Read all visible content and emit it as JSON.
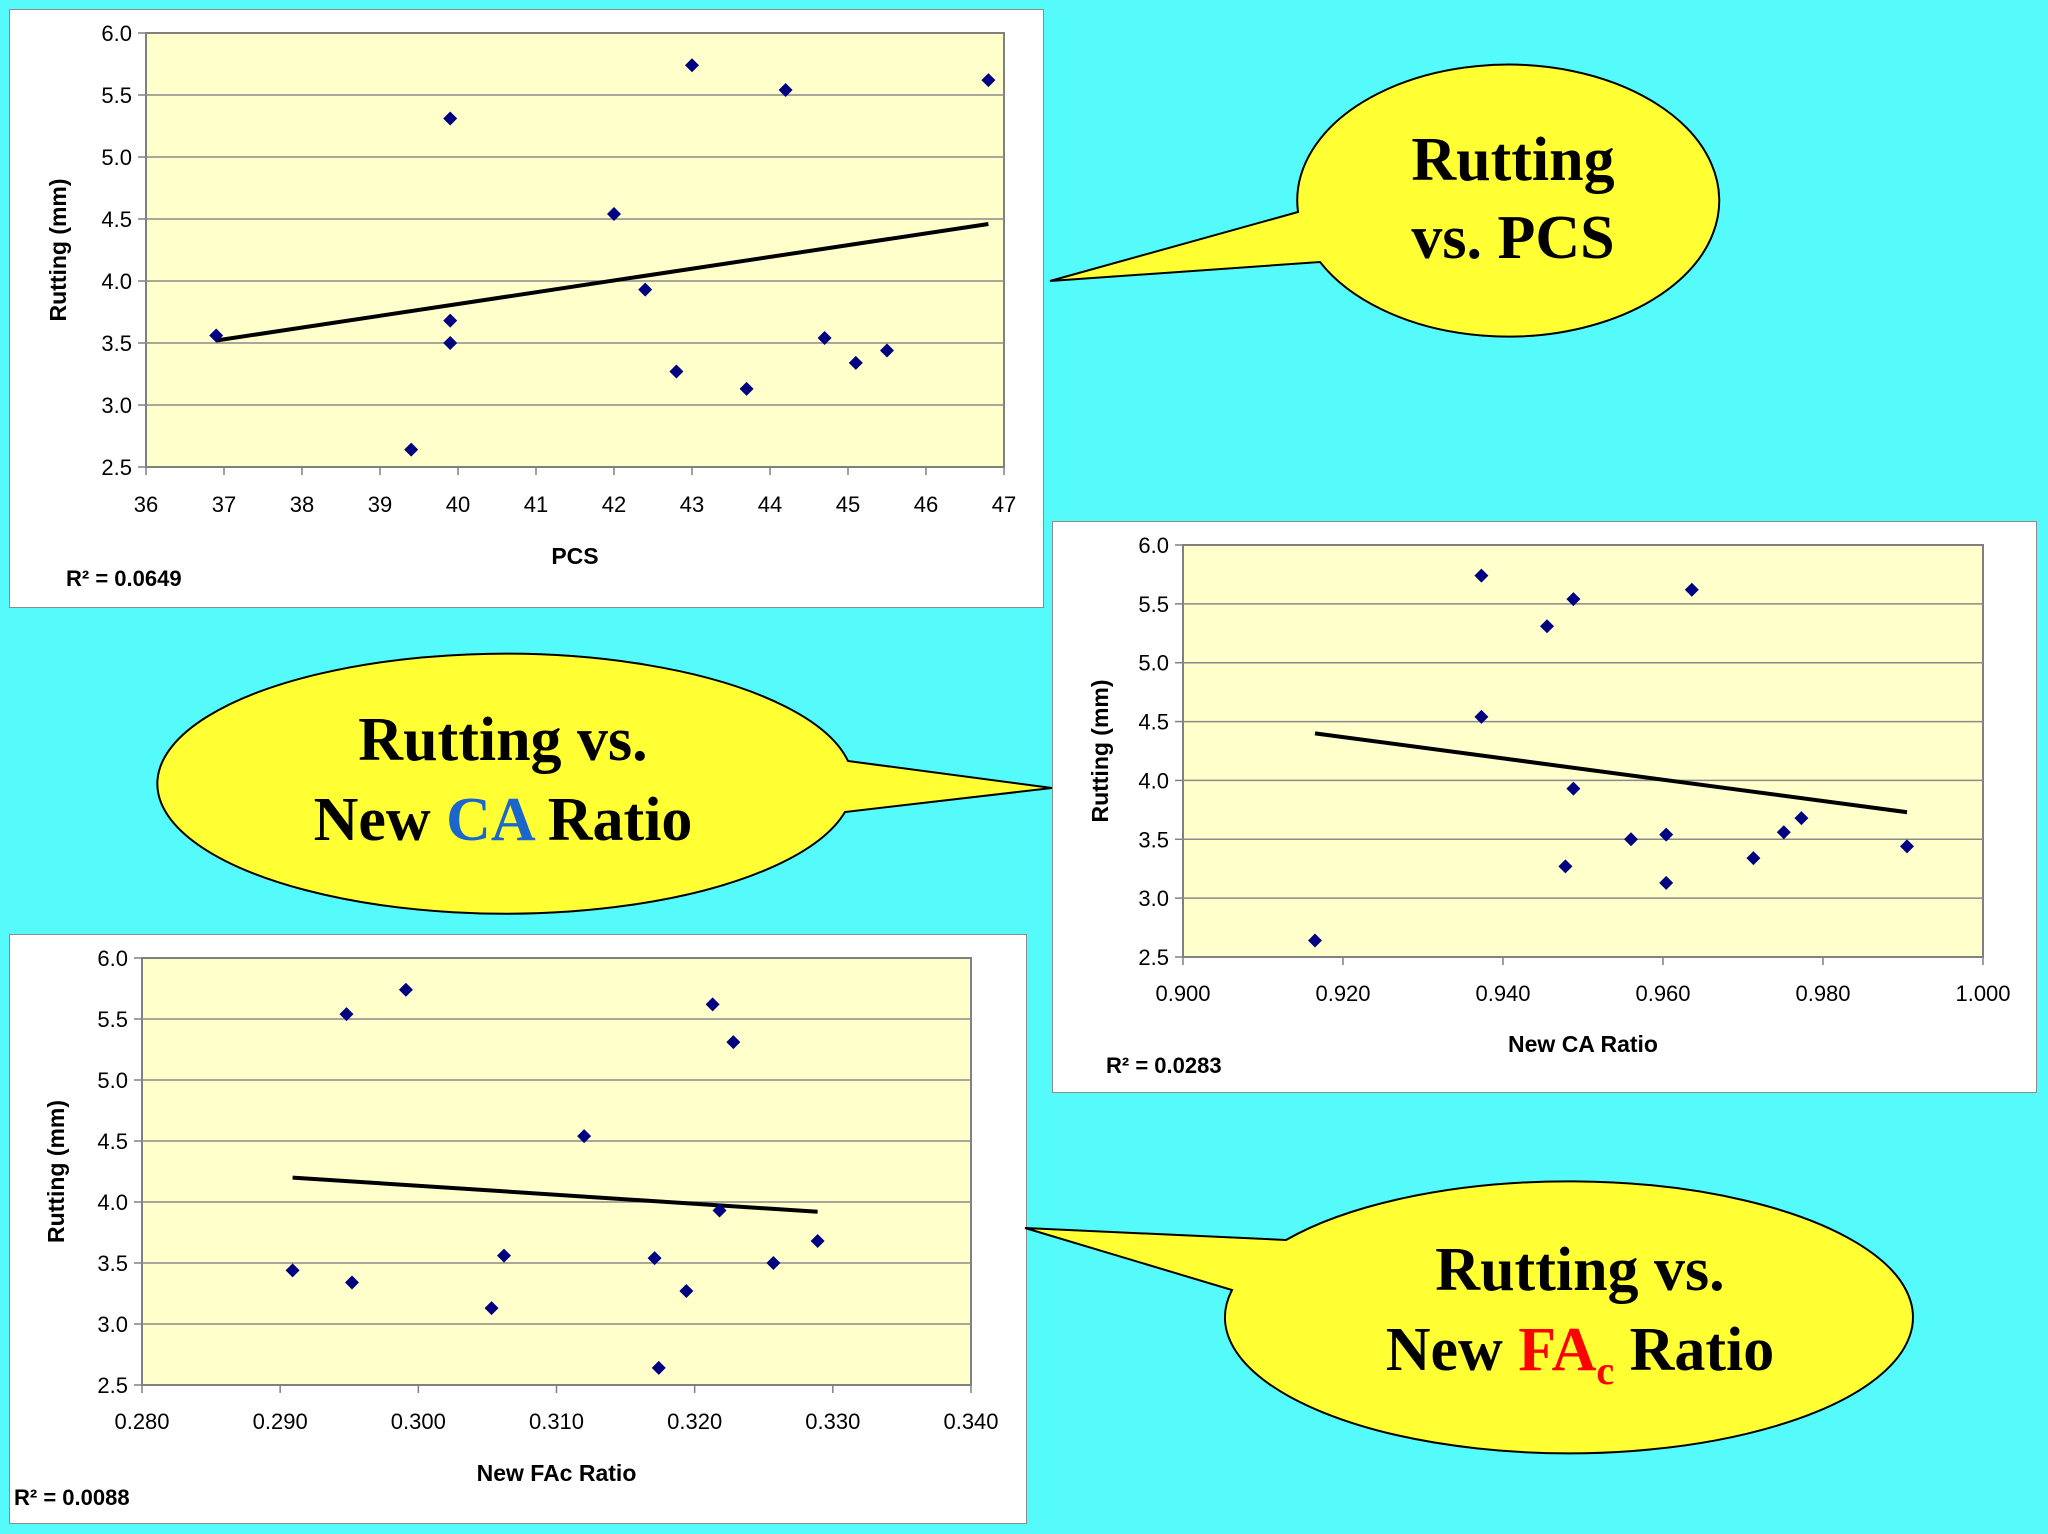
{
  "colors": {
    "background": "#55fbfb",
    "plot_area": "#ffffcc",
    "marker": "#000080",
    "trendline": "#000000",
    "bubble_fill": "#ffff33",
    "blue_accent": "#1a66cc",
    "red_accent": "#ff0000"
  },
  "callouts": {
    "pcs": {
      "line1": "Rutting",
      "line2": "vs. PCS"
    },
    "ca": {
      "line1": "Rutting vs.",
      "line2_pre": "New ",
      "line2_accent": "CA",
      "line2_post": " Ratio"
    },
    "fac": {
      "line1": "Rutting vs.",
      "line2_pre": "New ",
      "line2_accent": "FA",
      "line2_sub": "c",
      "line2_post": " Ratio"
    }
  },
  "chart_data": [
    {
      "id": "pcs",
      "type": "scatter",
      "title": "",
      "xlabel": "PCS",
      "ylabel": "Rutting (mm)",
      "xlim": [
        36,
        47
      ],
      "ylim": [
        2.5,
        6.0
      ],
      "xticks": [
        "36",
        "37",
        "38",
        "39",
        "40",
        "41",
        "42",
        "43",
        "44",
        "45",
        "46",
        "47"
      ],
      "yticks": [
        "2.5",
        "3.0",
        "3.5",
        "4.0",
        "4.5",
        "5.0",
        "5.5",
        "6.0"
      ],
      "points": [
        [
          36.9,
          3.56
        ],
        [
          39.4,
          2.64
        ],
        [
          39.9,
          5.31
        ],
        [
          39.9,
          3.68
        ],
        [
          39.9,
          3.5
        ],
        [
          42.0,
          4.54
        ],
        [
          42.4,
          3.93
        ],
        [
          42.8,
          3.27
        ],
        [
          43.0,
          5.74
        ],
        [
          43.7,
          3.13
        ],
        [
          44.2,
          5.54
        ],
        [
          44.7,
          3.54
        ],
        [
          45.1,
          3.34
        ],
        [
          45.5,
          3.44
        ],
        [
          46.8,
          5.62
        ]
      ],
      "trendline": {
        "x0": 36.9,
        "y0": 3.52,
        "x1": 46.8,
        "y1": 4.46
      },
      "r2_label": "R² = 0.0649"
    },
    {
      "id": "ca",
      "type": "scatter",
      "title": "",
      "xlabel": "New CA Ratio",
      "ylabel": "Rutting (mm)",
      "xlim": [
        0.9,
        1.0
      ],
      "ylim": [
        2.5,
        6.0
      ],
      "xticks": [
        "0.900",
        "0.920",
        "0.940",
        "0.960",
        "0.980",
        "1.000"
      ],
      "yticks": [
        "2.5",
        "3.0",
        "3.5",
        "4.0",
        "4.5",
        "5.0",
        "5.5",
        "6.0"
      ],
      "points": [
        [
          0.9165,
          2.64
        ],
        [
          0.9373,
          5.74
        ],
        [
          0.9373,
          4.54
        ],
        [
          0.9455,
          5.31
        ],
        [
          0.9488,
          5.54
        ],
        [
          0.9488,
          3.93
        ],
        [
          0.9478,
          3.27
        ],
        [
          0.956,
          3.5
        ],
        [
          0.9604,
          3.54
        ],
        [
          0.9604,
          3.13
        ],
        [
          0.9636,
          5.62
        ],
        [
          0.9713,
          3.34
        ],
        [
          0.9751,
          3.56
        ],
        [
          0.9773,
          3.68
        ],
        [
          0.9905,
          3.44
        ]
      ],
      "trendline": {
        "x0": 0.9165,
        "y0": 4.4,
        "x1": 0.9905,
        "y1": 3.73
      },
      "r2_label": "R² = 0.0283"
    },
    {
      "id": "fac",
      "type": "scatter",
      "title": "",
      "xlabel": "New FAc Ratio",
      "ylabel": "Rutting (mm)",
      "xlim": [
        0.28,
        0.34
      ],
      "ylim": [
        2.5,
        6.0
      ],
      "xticks": [
        "0.280",
        "0.290",
        "0.300",
        "0.310",
        "0.320",
        "0.330",
        "0.340"
      ],
      "yticks": [
        "2.5",
        "3.0",
        "3.5",
        "4.0",
        "4.5",
        "5.0",
        "5.5",
        "6.0"
      ],
      "points": [
        [
          0.2909,
          3.44
        ],
        [
          0.2948,
          5.54
        ],
        [
          0.2952,
          3.34
        ],
        [
          0.2991,
          5.74
        ],
        [
          0.3053,
          3.13
        ],
        [
          0.3062,
          3.56
        ],
        [
          0.312,
          4.54
        ],
        [
          0.3171,
          3.54
        ],
        [
          0.3174,
          2.64
        ],
        [
          0.3194,
          3.27
        ],
        [
          0.3213,
          5.62
        ],
        [
          0.3218,
          3.93
        ],
        [
          0.3228,
          5.31
        ],
        [
          0.3257,
          3.5
        ],
        [
          0.3289,
          3.68
        ]
      ],
      "trendline": {
        "x0": 0.2909,
        "y0": 4.2,
        "x1": 0.3289,
        "y1": 3.92
      },
      "r2_label": "R² = 0.0088"
    }
  ]
}
